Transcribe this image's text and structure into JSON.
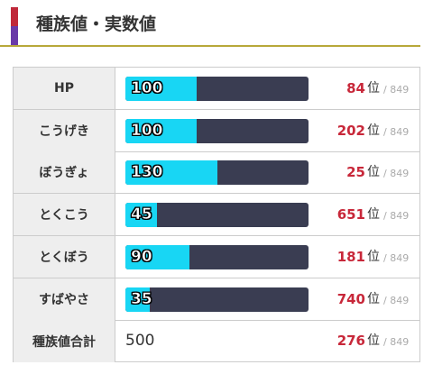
{
  "header": {
    "title": "種族値・実数値"
  },
  "table": {
    "rank_unit": "位",
    "rank_total": "/ 849",
    "rows": [
      {
        "label": "HP",
        "value": 100,
        "rank": 84
      },
      {
        "label": "こうげき",
        "value": 100,
        "rank": 202
      },
      {
        "label": "ぼうぎょ",
        "value": 130,
        "rank": 25
      },
      {
        "label": "とくこう",
        "value": 45,
        "rank": 651
      },
      {
        "label": "とくぼう",
        "value": 90,
        "rank": 181
      },
      {
        "label": "すばやさ",
        "value": 35,
        "rank": 740
      }
    ],
    "total_row": {
      "label": "種族値合計",
      "value": 500,
      "rank": 276
    }
  }
}
